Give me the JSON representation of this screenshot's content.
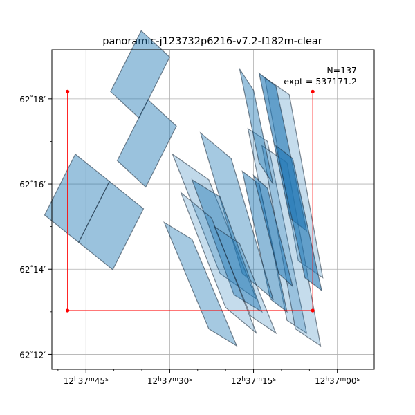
{
  "chart_data": {
    "type": "footprint_map",
    "title": "panoramic-j123732p6216-v7.2-f182m-clear",
    "annotation": {
      "lines": [
        "N=137",
        "expt = 537171.2"
      ],
      "placement": "top-right"
    },
    "x_axis": {
      "coordinate": "RA",
      "ticks_sec": [
        45,
        30,
        15,
        0
      ],
      "tick_labels": [
        {
          "h": "12",
          "m": "37",
          "s": "45"
        },
        {
          "h": "12",
          "m": "37",
          "s": "30"
        },
        {
          "h": "12",
          "m": "37",
          "s": "15"
        },
        {
          "h": "12",
          "m": "37",
          "s": "00"
        }
      ],
      "minor_ticks_sec": [
        50,
        40,
        35,
        25,
        20,
        10,
        5
      ],
      "range_sec": [
        51.1,
        -6.6
      ],
      "inverted": true
    },
    "y_axis": {
      "coordinate": "Dec",
      "ticks_arcmin": [
        12,
        14,
        16,
        18
      ],
      "tick_labels": [
        {
          "deg": "62",
          "min": "12"
        },
        {
          "deg": "62",
          "min": "14"
        },
        {
          "deg": "62",
          "min": "16"
        },
        {
          "deg": "62",
          "min": "18"
        }
      ],
      "minor_ticks_arcmin": [
        13,
        15,
        17
      ],
      "range_arcmin": [
        11.65,
        19.15
      ]
    },
    "grid": true,
    "outline_color": "#ff0000",
    "fill_color": "#1f77b4",
    "outline": [
      [
        48.3,
        18.17
      ],
      [
        48.3,
        13.03
      ],
      [
        4.4,
        13.03
      ],
      [
        4.4,
        18.17
      ]
    ],
    "footprints": [
      {
        "pts": [
          [
            35.5,
            17.55
          ],
          [
            40.6,
            18.17
          ],
          [
            35.1,
            19.6
          ],
          [
            30.0,
            18.98
          ]
        ],
        "alpha": 0.45
      },
      {
        "pts": [
          [
            46.9,
            16.7
          ],
          [
            40.8,
            16.06
          ],
          [
            46.3,
            14.63
          ],
          [
            52.4,
            15.27
          ]
        ],
        "alpha": 0.45
      },
      {
        "pts": [
          [
            34.3,
            15.93
          ],
          [
            39.4,
            16.55
          ],
          [
            33.9,
            17.98
          ],
          [
            28.8,
            17.36
          ]
        ],
        "alpha": 0.45
      },
      {
        "pts": [
          [
            40.8,
            16.06
          ],
          [
            34.7,
            15.42
          ],
          [
            40.2,
            13.99
          ],
          [
            46.3,
            14.63
          ]
        ],
        "alpha": 0.45
      },
      {
        "pts": [
          [
            8.6,
            18.1
          ],
          [
            13.0,
            18.5
          ],
          [
            7.0,
            14.2
          ],
          [
            2.6,
            13.8
          ]
        ],
        "alpha": 0.26
      },
      {
        "pts": [
          [
            12.5,
            17.0
          ],
          [
            16.0,
            17.3
          ],
          [
            9.0,
            12.8
          ],
          [
            5.5,
            12.5
          ]
        ],
        "alpha": 0.26
      },
      {
        "pts": [
          [
            9.0,
            16.5
          ],
          [
            13.5,
            16.9
          ],
          [
            7.5,
            12.6
          ],
          [
            3.0,
            12.2
          ]
        ],
        "alpha": 0.26
      },
      {
        "pts": [
          [
            15.0,
            18.2
          ],
          [
            17.5,
            18.7
          ],
          [
            14.0,
            16.5
          ],
          [
            11.5,
            16.0
          ]
        ],
        "alpha": 0.45
      },
      {
        "pts": [
          [
            11.0,
            18.3
          ],
          [
            14.0,
            18.6
          ],
          [
            8.5,
            15.2
          ],
          [
            5.5,
            14.9
          ]
        ],
        "alpha": 0.6
      },
      {
        "pts": [
          [
            8.0,
            16.6
          ],
          [
            11.0,
            16.9
          ],
          [
            5.8,
            13.8
          ],
          [
            2.8,
            13.5
          ]
        ],
        "alpha": 0.6
      },
      {
        "pts": [
          [
            14.0,
            16.0
          ],
          [
            17.0,
            16.3
          ],
          [
            12.0,
            13.3
          ],
          [
            9.0,
            13.0
          ]
        ],
        "alpha": 0.5
      },
      {
        "pts": [
          [
            19.0,
            16.6
          ],
          [
            24.5,
            17.2
          ],
          [
            17.0,
            13.9
          ],
          [
            11.5,
            13.3
          ]
        ],
        "alpha": 0.4
      },
      {
        "pts": [
          [
            23.0,
            16.1
          ],
          [
            29.5,
            16.7
          ],
          [
            21.0,
            13.9
          ],
          [
            14.5,
            13.3
          ]
        ],
        "alpha": 0.28
      },
      {
        "pts": [
          [
            21.0,
            15.7
          ],
          [
            26.0,
            16.1
          ],
          [
            18.5,
            13.4
          ],
          [
            13.5,
            13.0
          ]
        ],
        "alpha": 0.45
      },
      {
        "pts": [
          [
            26.0,
            14.7
          ],
          [
            31.0,
            15.1
          ],
          [
            23.0,
            12.6
          ],
          [
            18.0,
            12.2
          ]
        ],
        "alpha": 0.4
      },
      {
        "pts": [
          [
            12.5,
            15.9
          ],
          [
            15.0,
            16.2
          ],
          [
            10.5,
            13.9
          ],
          [
            8.0,
            13.6
          ]
        ],
        "alpha": 0.55
      },
      {
        "pts": [
          [
            22.5,
            15.2
          ],
          [
            28.0,
            15.8
          ],
          [
            20.0,
            13.1
          ],
          [
            14.5,
            12.5
          ]
        ],
        "alpha": 0.26
      },
      {
        "pts": [
          [
            17.5,
            14.6
          ],
          [
            22.0,
            15.0
          ],
          [
            15.5,
            12.9
          ],
          [
            11.0,
            12.5
          ]
        ],
        "alpha": 0.26
      }
    ]
  }
}
